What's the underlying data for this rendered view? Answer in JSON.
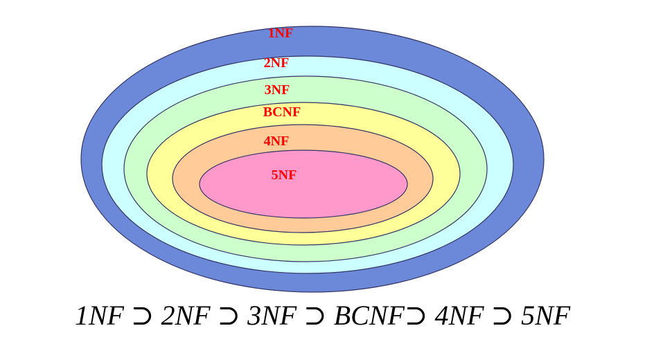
{
  "levels": [
    {
      "label": "1NF",
      "color": "#6b89d8"
    },
    {
      "label": "2NF",
      "color": "#ccffff"
    },
    {
      "label": "3NF",
      "color": "#ccffcc"
    },
    {
      "label": "BCNF",
      "color": "#ffff99"
    },
    {
      "label": "4NF",
      "color": "#ffcc99"
    },
    {
      "label": "5NF",
      "color": "#ff99cc"
    }
  ],
  "outline_color": "#333366",
  "label_color": "#ff0000",
  "formula": "1NF ⊃ 2NF ⊃ 3NF ⊃ BCNF⊃ 4NF ⊃ 5NF"
}
